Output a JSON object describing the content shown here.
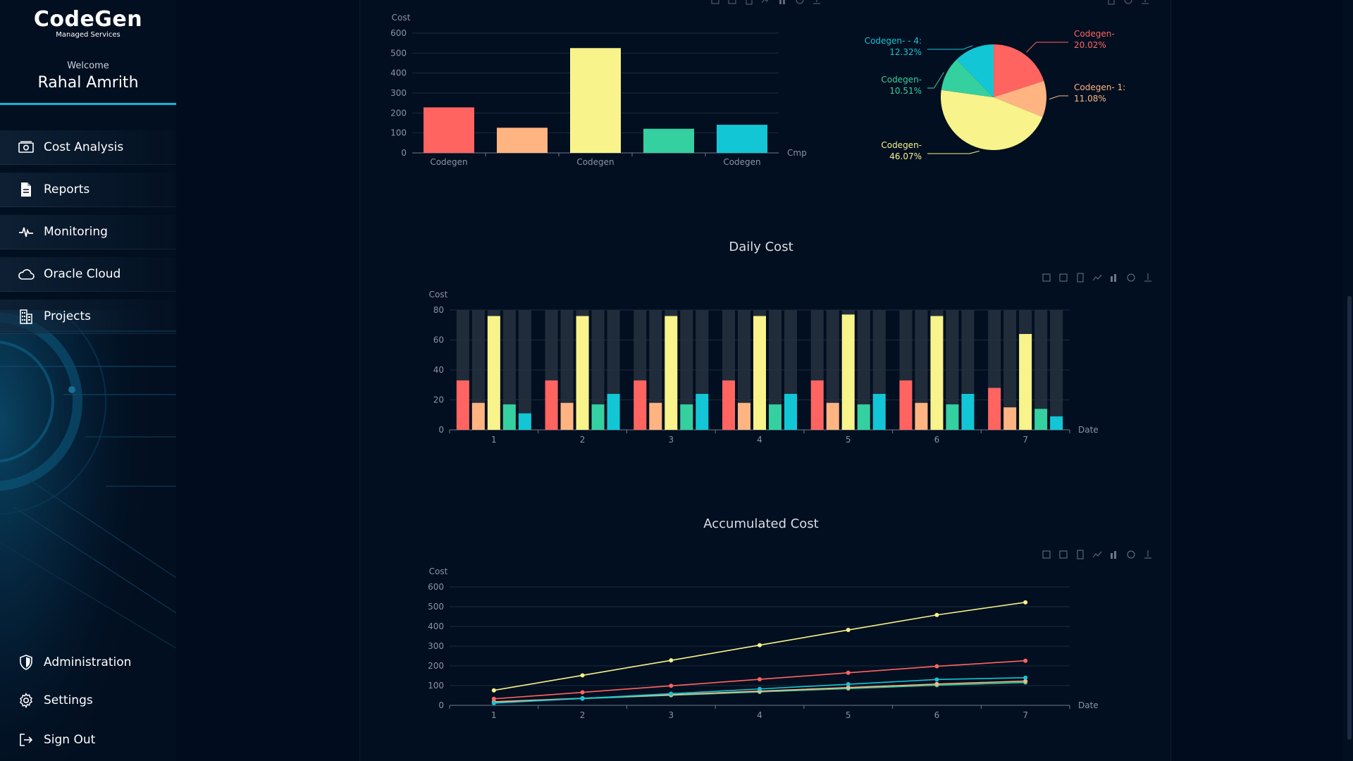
{
  "brand": {
    "name": "CodeGen",
    "subtitle": "Managed Services"
  },
  "user": {
    "welcome": "Welcome",
    "name": "Rahal Amrith"
  },
  "nav": [
    {
      "label": "Cost Analysis",
      "icon": "money-icon"
    },
    {
      "label": "Reports",
      "icon": "document-icon"
    },
    {
      "label": "Monitoring",
      "icon": "pulse-icon"
    },
    {
      "label": "Oracle Cloud",
      "icon": "cloud-icon"
    },
    {
      "label": "Projects",
      "icon": "building-icon"
    }
  ],
  "bottom_nav": [
    {
      "label": "Administration",
      "icon": "shield-icon"
    },
    {
      "label": "Settings",
      "icon": "gear-icon"
    },
    {
      "label": "Sign Out",
      "icon": "sign-out-icon"
    }
  ],
  "colors": {
    "red": "#ff6461",
    "orange": "#ffb482",
    "yellow": "#f8f38a",
    "green": "#35d0a0",
    "cyan": "#12c6d6",
    "accent": "#12b3d6"
  },
  "charts": {
    "daily_title": "Daily Cost",
    "accumulated_title": "Accumulated Cost"
  },
  "chart_data": [
    {
      "type": "bar",
      "ylabel": "Cost",
      "xlabel": "Cmp",
      "yticks": [
        0,
        100,
        200,
        300,
        400,
        500,
        600
      ],
      "ylim": [
        0,
        600
      ],
      "categories": [
        "Codegen",
        "",
        "Codegen",
        "",
        "Codegen"
      ],
      "values": [
        228,
        126,
        525,
        121,
        141
      ],
      "colors": [
        "#ff6461",
        "#ffb482",
        "#f8f38a",
        "#35d0a0",
        "#12c6d6"
      ]
    },
    {
      "type": "pie",
      "slices": [
        {
          "label": "Codegen-",
          "percent_text": "20.02%",
          "value": 20.02,
          "color": "#ff6461"
        },
        {
          "label": "Codegen- 1:",
          "percent_text": "11.08%",
          "value": 11.08,
          "color": "#ffb482"
        },
        {
          "label": "Codegen-",
          "percent_text": "46.07%",
          "value": 46.07,
          "color": "#f8f38a"
        },
        {
          "label": "Codegen-",
          "percent_text": "10.51%",
          "value": 10.51,
          "color": "#35d0a0"
        },
        {
          "label": "Codegen- - 4:",
          "percent_text": "12.32%",
          "value": 12.32,
          "color": "#12c6d6"
        }
      ]
    },
    {
      "type": "bar",
      "title": "Daily Cost",
      "ylabel": "Cost",
      "xlabel": "Date",
      "yticks": [
        0,
        20,
        40,
        60,
        80
      ],
      "ylim": [
        0,
        80
      ],
      "categories": [
        "1",
        "2",
        "3",
        "4",
        "5",
        "6",
        "7"
      ],
      "series": [
        {
          "values": [
            33,
            33,
            33,
            33,
            33,
            33,
            28
          ],
          "color": "#ff6461"
        },
        {
          "values": [
            18,
            18,
            18,
            18,
            18,
            18,
            15
          ],
          "color": "#ffb482"
        },
        {
          "values": [
            76,
            76,
            76,
            76,
            77,
            76,
            64
          ],
          "color": "#f8f38a"
        },
        {
          "values": [
            17,
            17,
            17,
            17,
            17,
            17,
            14
          ],
          "color": "#35d0a0"
        },
        {
          "values": [
            11,
            24,
            24,
            24,
            24,
            24,
            9
          ],
          "color": "#12c6d6"
        }
      ]
    },
    {
      "type": "line",
      "title": "Accumulated Cost",
      "ylabel": "Cost",
      "xlabel": "Date",
      "yticks": [
        0,
        100,
        200,
        300,
        400,
        500,
        600
      ],
      "ylim": [
        0,
        600
      ],
      "categories": [
        "1",
        "2",
        "3",
        "4",
        "5",
        "6",
        "7"
      ],
      "series": [
        {
          "values": [
            76,
            152,
            228,
            305,
            382,
            458,
            522
          ],
          "color": "#f8f38a"
        },
        {
          "values": [
            33,
            66,
            99,
            132,
            165,
            198,
            226
          ],
          "color": "#ff6461"
        },
        {
          "values": [
            11,
            35,
            59,
            83,
            107,
            131,
            140
          ],
          "color": "#12c6d6"
        },
        {
          "values": [
            18,
            36,
            54,
            72,
            90,
            108,
            123
          ],
          "color": "#ffb482"
        },
        {
          "values": [
            17,
            34,
            51,
            68,
            85,
            102,
            116
          ],
          "color": "#35d0a0"
        }
      ]
    }
  ]
}
